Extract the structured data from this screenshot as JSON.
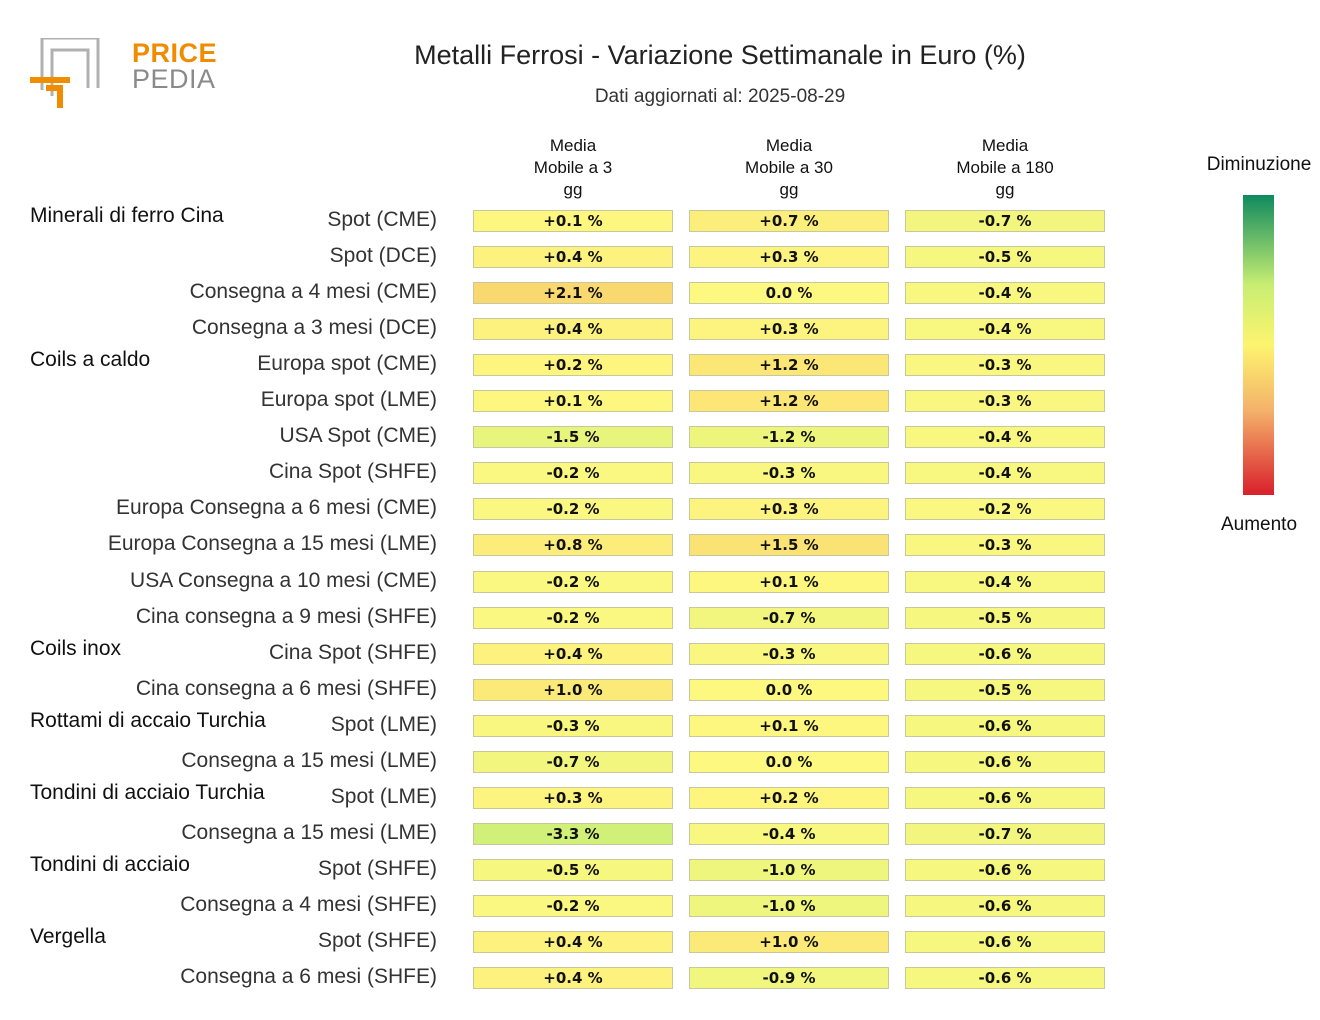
{
  "logo": {
    "line1": "PRICE",
    "line2": "PEDIA"
  },
  "title": "Metalli Ferrosi - Variazione Settimanale in Euro (%)",
  "subtitle": "Dati aggiornati al: 2025-08-29",
  "legend": {
    "top": "Diminuzione",
    "bottom": "Aumento"
  },
  "colors": {
    "decrease": "#0f8a5f",
    "neutral": "#fdf46f",
    "increase": "#d91f2b"
  },
  "chart_data": {
    "type": "heatmap",
    "title": "Metalli Ferrosi - Variazione Settimanale in Euro (%)",
    "columns": [
      "Media Mobile a 3 gg",
      "Media Mobile a 30 gg",
      "Media Mobile a 180 gg"
    ],
    "column_lines": [
      [
        "Media",
        "Mobile a 3",
        "gg"
      ],
      [
        "Media",
        "Mobile a 30",
        "gg"
      ],
      [
        "Media",
        "Mobile a 180",
        "gg"
      ]
    ],
    "rows": [
      {
        "group": "Minerali di ferro Cina",
        "label": "Spot (CME)",
        "values": [
          "+0.1 %",
          "+0.7 %",
          "-0.7 %"
        ]
      },
      {
        "group": "",
        "label": "Spot (DCE)",
        "values": [
          "+0.4 %",
          "+0.3 %",
          "-0.5 %"
        ]
      },
      {
        "group": "",
        "label": "Consegna a 4 mesi (CME)",
        "values": [
          "+2.1 %",
          "0.0 %",
          "-0.4 %"
        ]
      },
      {
        "group": "",
        "label": "Consegna a 3 mesi (DCE)",
        "values": [
          "+0.4 %",
          "+0.3 %",
          "-0.4 %"
        ]
      },
      {
        "group": "Coils a caldo",
        "label": "Europa spot (CME)",
        "values": [
          "+0.2 %",
          "+1.2 %",
          "-0.3 %"
        ]
      },
      {
        "group": "",
        "label": "Europa spot (LME)",
        "values": [
          "+0.1 %",
          "+1.2 %",
          "-0.3 %"
        ]
      },
      {
        "group": "",
        "label": "USA Spot (CME)",
        "values": [
          "-1.5 %",
          "-1.2 %",
          "-0.4 %"
        ]
      },
      {
        "group": "",
        "label": "Cina Spot (SHFE)",
        "values": [
          "-0.2 %",
          "-0.3 %",
          "-0.4 %"
        ]
      },
      {
        "group": "",
        "label": "Europa Consegna a 6 mesi (CME)",
        "values": [
          "-0.2 %",
          "+0.3 %",
          "-0.2 %"
        ]
      },
      {
        "group": "",
        "label": "Europa Consegna a 15 mesi (LME)",
        "values": [
          "+0.8 %",
          "+1.5 %",
          "-0.3 %"
        ]
      },
      {
        "group": "",
        "label": "USA Consegna a 10 mesi (CME)",
        "values": [
          "-0.2 %",
          "+0.1 %",
          "-0.4 %"
        ]
      },
      {
        "group": "",
        "label": "Cina consegna a 9 mesi (SHFE)",
        "values": [
          "-0.2 %",
          "-0.7 %",
          "-0.5 %"
        ]
      },
      {
        "group": "Coils inox",
        "label": "Cina Spot (SHFE)",
        "values": [
          "+0.4 %",
          "-0.3 %",
          "-0.6 %"
        ]
      },
      {
        "group": "",
        "label": "Cina consegna a 6 mesi (SHFE)",
        "values": [
          "+1.0 %",
          "0.0 %",
          "-0.5 %"
        ]
      },
      {
        "group": "Rottami di accaio Turchia",
        "label": "Spot (LME)",
        "values": [
          "-0.3 %",
          "+0.1 %",
          "-0.6 %"
        ]
      },
      {
        "group": "",
        "label": "Consegna a 15 mesi (LME)",
        "values": [
          "-0.7 %",
          "0.0 %",
          "-0.6 %"
        ]
      },
      {
        "group": "Tondini di acciaio Turchia",
        "label": "Spot (LME)",
        "values": [
          "+0.3 %",
          "+0.2 %",
          "-0.6 %"
        ]
      },
      {
        "group": "",
        "label": "Consegna a 15 mesi (LME)",
        "values": [
          "-3.3 %",
          "-0.4 %",
          "-0.7 %"
        ]
      },
      {
        "group": "Tondini di acciaio",
        "label": "Spot (SHFE)",
        "values": [
          "-0.5 %",
          "-1.0 %",
          "-0.6 %"
        ]
      },
      {
        "group": "",
        "label": "Consegna a 4 mesi (SHFE)",
        "values": [
          "-0.2 %",
          "-1.0 %",
          "-0.6 %"
        ]
      },
      {
        "group": "Vergella",
        "label": "Spot (SHFE)",
        "values": [
          "+0.4 %",
          "+1.0 %",
          "-0.6 %"
        ]
      },
      {
        "group": "",
        "label": "Consegna a 6 mesi (SHFE)",
        "values": [
          "+0.4 %",
          "-0.9 %",
          "-0.6 %"
        ]
      }
    ]
  }
}
